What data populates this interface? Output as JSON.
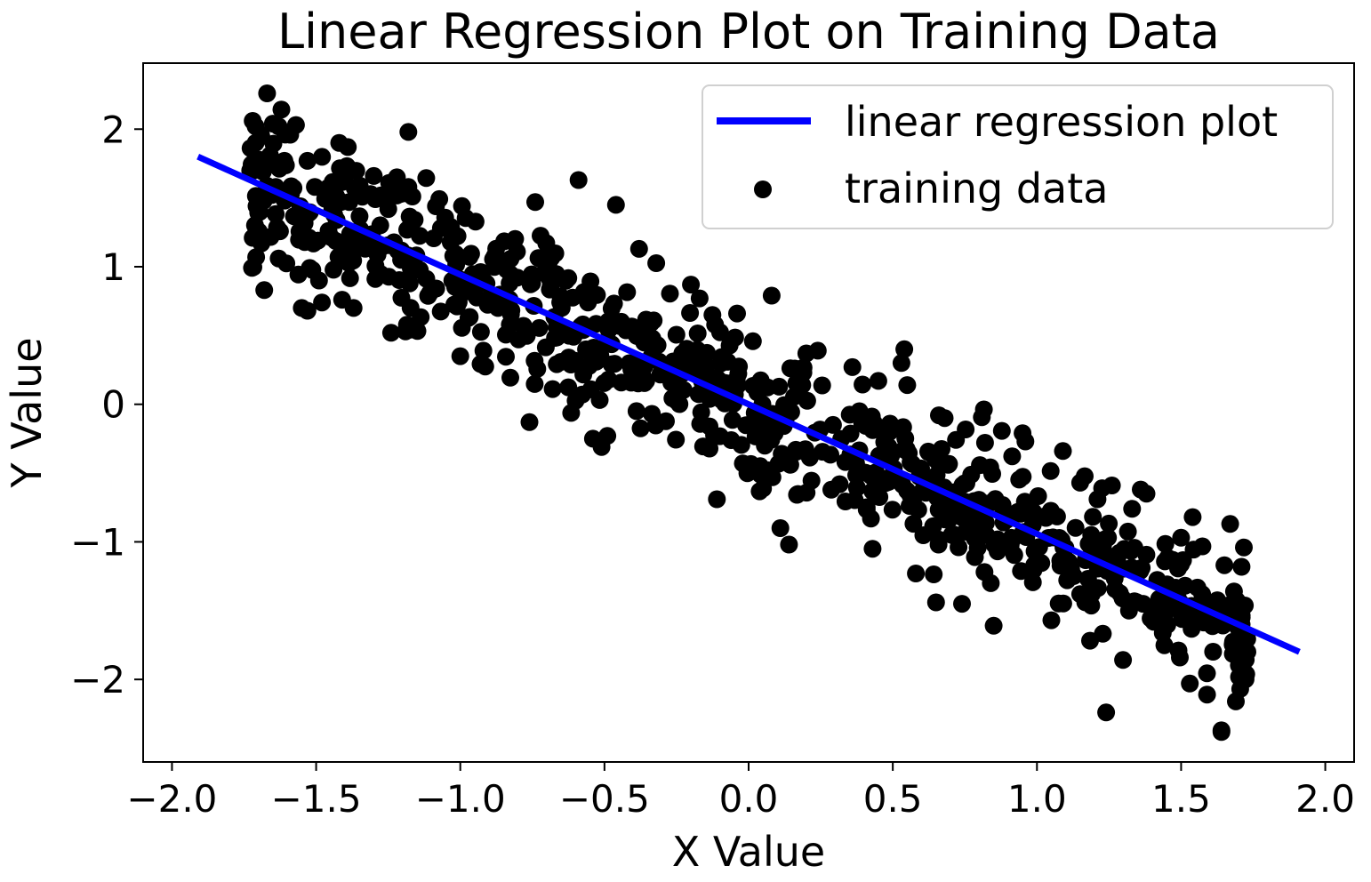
{
  "chart_data": {
    "type": "scatter",
    "title": "Linear Regression Plot on Training Data",
    "xlabel": "X Value",
    "ylabel": "Y Value",
    "xlim": [
      -2.1,
      2.1
    ],
    "ylim": [
      -2.6,
      2.48
    ],
    "xticks": [
      -2.0,
      -1.5,
      -1.0,
      -0.5,
      0.0,
      0.5,
      1.0,
      1.5,
      2.0
    ],
    "xtick_labels": [
      "−2.0",
      "−1.5",
      "−1.0",
      "−0.5",
      "0.0",
      "0.5",
      "1.0",
      "1.5",
      "2.0"
    ],
    "yticks": [
      -2,
      -1,
      0,
      1,
      2
    ],
    "ytick_labels": [
      "−2",
      "−1",
      "0",
      "1",
      "2"
    ],
    "grid": false,
    "legend": {
      "placement": "upper-right",
      "entries": [
        {
          "label": "linear regression plot",
          "kind": "line",
          "color": "#0000ff"
        },
        {
          "label": "training data",
          "kind": "marker",
          "color": "#000000"
        }
      ]
    },
    "series": [
      {
        "name": "linear regression plot",
        "kind": "line",
        "color": "#0000ff",
        "x": [
          -1.91,
          1.91
        ],
        "y": [
          1.8,
          -1.8
        ]
      },
      {
        "name": "training data",
        "kind": "scatter",
        "color": "#000000",
        "n_points": 850,
        "x_range": [
          -1.73,
          1.73
        ],
        "slope": -0.943,
        "noise_sd": 0.26,
        "points": [
          [
            -1.72,
            2.06
          ],
          [
            -1.71,
            2.02
          ],
          [
            -1.65,
            2.04
          ],
          [
            -1.63,
            2.02
          ],
          [
            -1.57,
            2.03
          ],
          [
            -1.59,
            1.96
          ],
          [
            -1.67,
            2.26
          ],
          [
            -1.18,
            1.98
          ],
          [
            -1.71,
            1.9
          ],
          [
            -1.66,
            1.81
          ],
          [
            -1.39,
            1.87
          ],
          [
            -1.42,
            1.9
          ],
          [
            -1.61,
            1.77
          ],
          [
            -1.53,
            1.77
          ],
          [
            -1.4,
            1.66
          ],
          [
            -1.68,
            0.83
          ],
          [
            -1.53,
            0.68
          ],
          [
            -1.55,
            0.7
          ],
          [
            -1.48,
            0.74
          ],
          [
            -1.41,
            0.76
          ],
          [
            -1.24,
            0.52
          ],
          [
            -1.19,
            0.53
          ],
          [
            -1.37,
            0.7
          ],
          [
            -1.49,
            0.9
          ],
          [
            -1.72,
            1.21
          ],
          [
            -1.69,
            1.17
          ],
          [
            -1.63,
            1.06
          ],
          [
            -1.3,
            1.66
          ],
          [
            -1.22,
            1.65
          ],
          [
            -1.18,
            1.58
          ],
          [
            -0.74,
            1.47
          ],
          [
            -0.59,
            1.63
          ],
          [
            -0.46,
            1.45
          ],
          [
            -0.38,
            1.13
          ],
          [
            -0.2,
            0.87
          ],
          [
            -0.17,
            0.77
          ],
          [
            -0.04,
            0.66
          ],
          [
            0.08,
            0.79
          ],
          [
            -1.0,
            0.35
          ],
          [
            -0.92,
            0.39
          ],
          [
            -0.76,
            -0.13
          ],
          [
            -0.54,
            -0.25
          ],
          [
            -0.51,
            -0.31
          ],
          [
            -0.49,
            -0.23
          ],
          [
            -0.11,
            -0.69
          ],
          [
            0.11,
            -0.9
          ],
          [
            0.14,
            -1.02
          ],
          [
            0.43,
            -1.05
          ],
          [
            0.58,
            -1.23
          ],
          [
            0.65,
            -1.44
          ],
          [
            0.74,
            -1.45
          ],
          [
            0.84,
            -1.3
          ],
          [
            0.85,
            -1.61
          ],
          [
            1.15,
            -1.38
          ],
          [
            1.05,
            -1.57
          ],
          [
            1.24,
            -2.24
          ],
          [
            1.53,
            -2.03
          ],
          [
            1.59,
            -2.11
          ],
          [
            1.64,
            -2.37
          ],
          [
            1.67,
            -0.87
          ],
          [
            1.69,
            -2.16
          ],
          [
            1.73,
            -1.8
          ],
          [
            1.71,
            -1.6
          ],
          [
            1.65,
            -1.17
          ],
          [
            0.54,
            0.4
          ],
          [
            0.53,
            0.3
          ],
          [
            0.55,
            0.14
          ],
          [
            0.45,
            0.17
          ],
          [
            0.36,
            0.27
          ],
          [
            0.24,
            0.39
          ],
          [
            0.2,
            0.37
          ],
          [
            0.19,
            0.23
          ],
          [
            0.16,
            0.26
          ],
          [
            0.95,
            -0.21
          ],
          [
            0.96,
            -0.27
          ],
          [
            1.09,
            -0.34
          ],
          [
            0.66,
            -0.08
          ],
          [
            0.68,
            -0.1
          ],
          [
            1.54,
            -0.82
          ],
          [
            1.5,
            -0.97
          ],
          [
            1.47,
            -1.13
          ],
          [
            1.38,
            -0.65
          ],
          [
            1.36,
            -0.62
          ],
          [
            1.26,
            -0.59
          ],
          [
            1.33,
            -0.76
          ],
          [
            1.21,
            -0.69
          ],
          [
            1.15,
            -0.57
          ],
          [
            0.82,
            -0.28
          ],
          [
            -0.27,
            0.22
          ],
          [
            -0.23,
            0.37
          ],
          [
            -0.02,
            -0.43
          ],
          [
            0.04,
            -0.45
          ],
          [
            0.07,
            -0.48
          ]
        ]
      }
    ]
  }
}
